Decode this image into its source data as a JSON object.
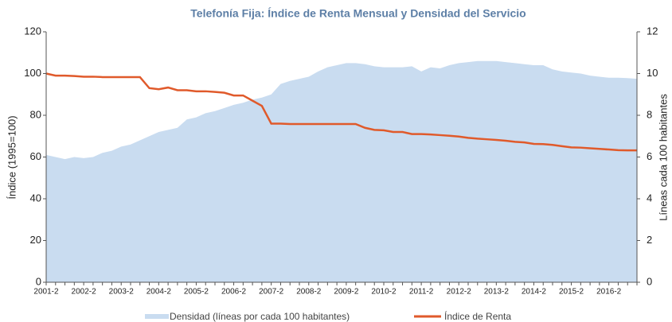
{
  "chart_data": {
    "type": "area-line",
    "title": "Telefonía Fija: Índice de Renta Mensual y Densidad del Servicio",
    "y_label": "Índice (1995=100)",
    "y2_label": "Líneas cada 100 habitantes",
    "categories": [
      "2001-2",
      null,
      null,
      null,
      "2002-2",
      null,
      null,
      null,
      "2003-2",
      null,
      null,
      null,
      "2004-2",
      null,
      null,
      null,
      "2005-2",
      null,
      null,
      null,
      "2006-2",
      null,
      null,
      null,
      "2007-2",
      null,
      null,
      null,
      "2008-2",
      null,
      null,
      null,
      "2009-2",
      null,
      null,
      null,
      "2010-2",
      null,
      null,
      null,
      "2011-2",
      null,
      null,
      null,
      "2012-2",
      null,
      null,
      null,
      "2013-2",
      null,
      null,
      null,
      "2014-2",
      null,
      null,
      null,
      "2015-2",
      null,
      null,
      null,
      "2016-2",
      null,
      null,
      null
    ],
    "series": [
      {
        "name": "Densidad (líneas por cada 100 habitantes)",
        "color": "#c9dcf0",
        "axis": "y2",
        "kind": "area",
        "values": [
          6.1,
          6.0,
          5.9,
          6.0,
          5.95,
          6.0,
          6.2,
          6.3,
          6.5,
          6.6,
          6.8,
          7.0,
          7.2,
          7.3,
          7.4,
          7.8,
          7.9,
          8.1,
          8.2,
          8.35,
          8.5,
          8.6,
          8.75,
          8.85,
          9.0,
          9.5,
          9.65,
          9.75,
          9.85,
          10.1,
          10.3,
          10.4,
          10.5,
          10.5,
          10.45,
          10.35,
          10.3,
          10.3,
          10.3,
          10.35,
          10.1,
          10.3,
          10.25,
          10.4,
          10.5,
          10.55,
          10.6,
          10.6,
          10.6,
          10.55,
          10.5,
          10.45,
          10.4,
          10.4,
          10.2,
          10.1,
          10.05,
          10.0,
          9.9,
          9.85,
          9.8,
          9.8,
          9.78,
          9.75
        ]
      },
      {
        "name": "Índice de Renta",
        "color": "#e05a2b",
        "axis": "y",
        "kind": "line",
        "values": [
          100,
          99,
          99,
          98.8,
          98.5,
          98.5,
          98.3,
          98.3,
          98.3,
          98.3,
          98.3,
          93,
          92.5,
          93.3,
          92,
          92,
          91.5,
          91.5,
          91.2,
          90.8,
          89.5,
          89.5,
          87,
          84.5,
          76,
          76,
          75.8,
          75.8,
          75.8,
          75.8,
          75.8,
          75.8,
          75.8,
          75.8,
          74,
          73,
          72.8,
          72,
          72,
          71,
          71,
          70.8,
          70.5,
          70.2,
          69.8,
          69.2,
          68.8,
          68.5,
          68.2,
          67.8,
          67.3,
          67,
          66.3,
          66.2,
          65.8,
          65.2,
          64.6,
          64.5,
          64.2,
          63.9,
          63.6,
          63.3,
          63.2,
          63.2
        ]
      }
    ],
    "ylim": [
      0,
      120
    ],
    "yticks": [
      0,
      20,
      40,
      60,
      80,
      100,
      120
    ],
    "y2lim": [
      0,
      12
    ],
    "y2ticks": [
      0,
      2,
      4,
      6,
      8,
      10,
      12
    ],
    "legend": "bottom"
  }
}
